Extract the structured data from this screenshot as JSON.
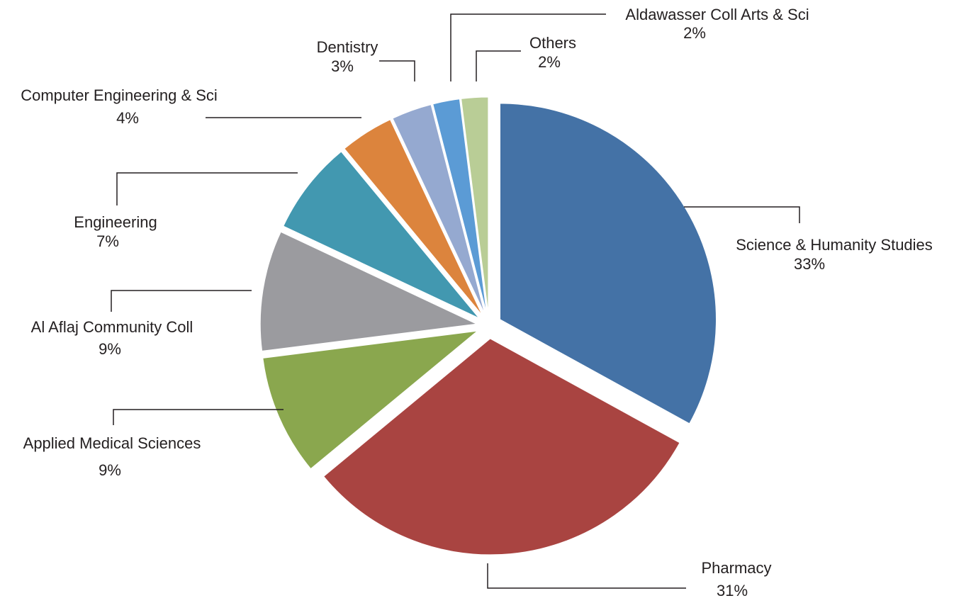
{
  "chart_data": {
    "type": "pie",
    "categories": [
      "Science & Humanity Studies",
      "Pharmacy",
      "Applied Medical Sciences",
      "Al Aflaj Community Coll",
      "Engineering",
      "Computer Engineering & Sci",
      "Dentistry",
      "Aldawasser Coll Arts & Sci",
      "Others"
    ],
    "values": [
      33,
      31,
      9,
      9,
      7,
      4,
      3,
      2,
      2
    ],
    "value_labels": [
      "33%",
      "31%",
      "9%",
      "9%",
      "7%",
      "4%",
      "3%",
      "2%",
      "2%"
    ],
    "colors": [
      "#4472a6",
      "#a94441",
      "#8aa74e",
      "#9b9b9f",
      "#4298b0",
      "#dc843d",
      "#95a9d0",
      "#5b9bd5",
      "#b9cd96"
    ]
  }
}
